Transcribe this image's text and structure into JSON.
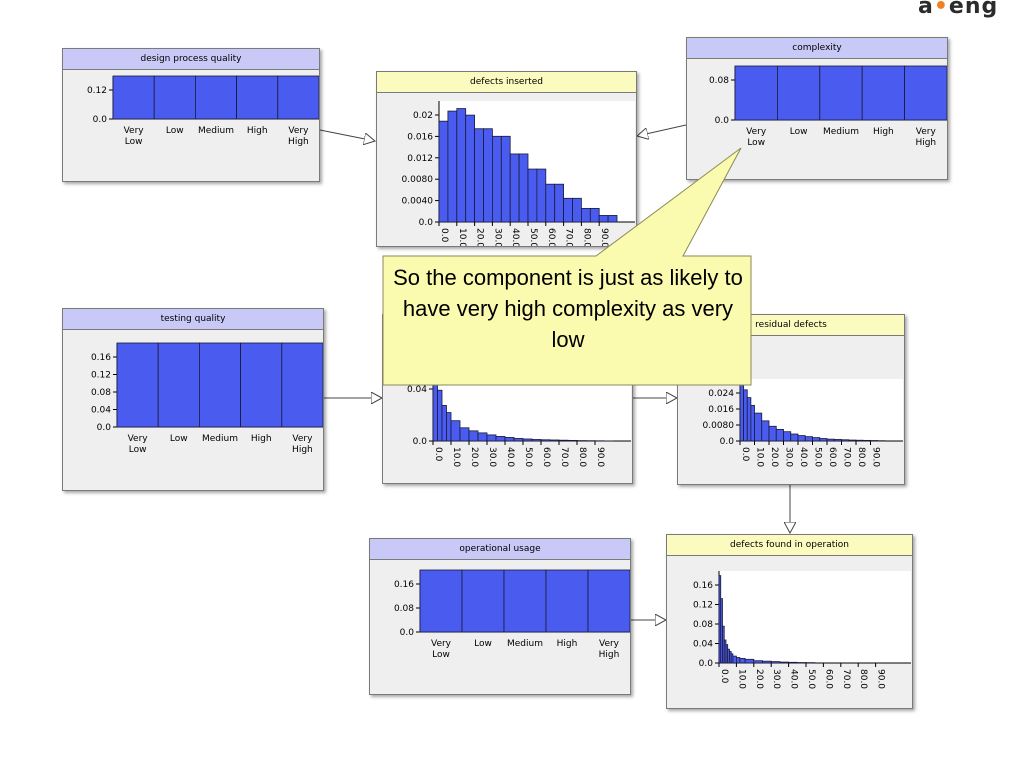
{
  "logo": {
    "before": "a",
    "dot": "•",
    "after": "eng"
  },
  "callout": {
    "text": "So the component is just as likely to have very high complexity as very low"
  },
  "colors": {
    "bar": "#4a5cf0",
    "cat_header": "#c9c9f7",
    "num_header": "#fbfbc0",
    "callout": "#fbfbb0"
  },
  "chart_data": [
    {
      "type": "bar",
      "title": "design process quality",
      "categories": [
        "Very\nLow",
        "Low",
        "Medium",
        "High",
        "Very\nHigh"
      ],
      "values": [
        0.2,
        0.2,
        0.2,
        0.2,
        0.2
      ],
      "yticks": [
        "0.12",
        "0.0"
      ],
      "ylim": [
        0,
        0.2
      ]
    },
    {
      "type": "bar",
      "title": "defects inserted",
      "x": [
        0,
        5,
        10,
        15,
        20,
        25,
        30,
        35,
        40,
        45,
        50,
        55,
        60,
        65,
        70,
        75,
        80,
        85,
        90,
        95
      ],
      "values": [
        0.02,
        0.022,
        0.0225,
        0.0212,
        0.0185,
        0.0185,
        0.017,
        0.017,
        0.0135,
        0.0135,
        0.0105,
        0.0105,
        0.0075,
        0.0075,
        0.0047,
        0.0047,
        0.0027,
        0.0027,
        0.0013,
        0.0013
      ],
      "yticks": [
        "0.02",
        "0.016",
        "0.012",
        "0.0080",
        "0.0040",
        "0.0"
      ],
      "xticks": [
        "0.0",
        "10.0",
        "20.0",
        "30.0",
        "40.0",
        "50.0",
        "60.0",
        "70.0",
        "80.0",
        "90.0"
      ],
      "ylim": [
        0,
        0.024
      ]
    },
    {
      "type": "bar",
      "title": "complexity",
      "categories": [
        "Very\nLow",
        "Low",
        "Medium",
        "High",
        "Very\nHigh"
      ],
      "values": [
        0.2,
        0.2,
        0.2,
        0.2,
        0.2
      ],
      "yticks": [
        "0.08",
        "0.0"
      ],
      "ylim": [
        0,
        0.2
      ]
    },
    {
      "type": "bar",
      "title": "testing quality",
      "categories": [
        "Very\nLow",
        "Low",
        "Medium",
        "High",
        "Very\nHigh"
      ],
      "values": [
        0.2,
        0.2,
        0.2,
        0.2,
        0.2
      ],
      "yticks": [
        "0.16",
        "0.12",
        "0.08",
        "0.04",
        "0.0"
      ],
      "ylim": [
        0,
        0.2
      ]
    },
    {
      "type": "bar",
      "title": "",
      "x": [
        0,
        2.5,
        5,
        7.5,
        10,
        15,
        20,
        25,
        30,
        35,
        40,
        45,
        50,
        55,
        60,
        65,
        70,
        75,
        80,
        85,
        90,
        95
      ],
      "values": [
        0.062,
        0.05,
        0.035,
        0.028,
        0.02,
        0.013,
        0.01,
        0.008,
        0.006,
        0.0045,
        0.0035,
        0.0025,
        0.002,
        0.0015,
        0.0012,
        0.001,
        0.0008,
        0.0006,
        0.0004,
        0.0003,
        0.0002,
        0.0001
      ],
      "yticks": [
        "0.04",
        "0.0"
      ],
      "xticks": [
        "0.0",
        "10.0",
        "20.0",
        "30.0",
        "40.0",
        "50.0",
        "60.0",
        "70.0",
        "80.0",
        "90.0"
      ],
      "ylim": [
        0,
        0.065
      ]
    },
    {
      "type": "bar",
      "title": "residual defects",
      "x": [
        0,
        2.5,
        5,
        7.5,
        10,
        15,
        20,
        25,
        30,
        35,
        40,
        45,
        50,
        55,
        60,
        65,
        70,
        75,
        80,
        85,
        90,
        95
      ],
      "values": [
        0.04,
        0.033,
        0.028,
        0.023,
        0.018,
        0.013,
        0.0095,
        0.0075,
        0.006,
        0.0045,
        0.0035,
        0.0028,
        0.0022,
        0.0016,
        0.0012,
        0.001,
        0.0008,
        0.0006,
        0.0005,
        0.0004,
        0.0003,
        0.0002
      ],
      "yticks": [
        "0.024",
        "0.016",
        "0.0080",
        "0.0"
      ],
      "xticks": [
        "0.0",
        "10.0",
        "20.0",
        "30.0",
        "40.0",
        "50.0",
        "60.0",
        "70.0",
        "80.0",
        "90.0"
      ],
      "ylim": [
        0,
        0.04
      ]
    },
    {
      "type": "bar",
      "title": "operational usage",
      "categories": [
        "Very\nLow",
        "Low",
        "Medium",
        "High",
        "Very\nHigh"
      ],
      "values": [
        0.2,
        0.2,
        0.2,
        0.2,
        0.2
      ],
      "yticks": [
        "0.16",
        "0.08",
        "0.0"
      ],
      "ylim": [
        0,
        0.2
      ]
    },
    {
      "type": "bar",
      "title": "defects found in operation",
      "x": [
        0,
        1,
        2,
        3,
        4,
        5,
        6,
        7,
        8,
        10,
        12,
        15,
        20,
        25,
        30,
        35,
        40,
        45,
        50
      ],
      "values": [
        0.19,
        0.14,
        0.08,
        0.05,
        0.04,
        0.03,
        0.025,
        0.02,
        0.015,
        0.012,
        0.01,
        0.008,
        0.005,
        0.004,
        0.003,
        0.002,
        0.0015,
        0.001,
        0.0008
      ],
      "yticks": [
        "0.16",
        "0.12",
        "0.08",
        "0.04",
        "0.0"
      ],
      "xticks": [
        "0.0",
        "10.0",
        "20.0",
        "30.0",
        "40.0",
        "50.0",
        "60.0",
        "70.0",
        "80.0",
        "90.0"
      ],
      "ylim": [
        0,
        0.2
      ]
    }
  ]
}
